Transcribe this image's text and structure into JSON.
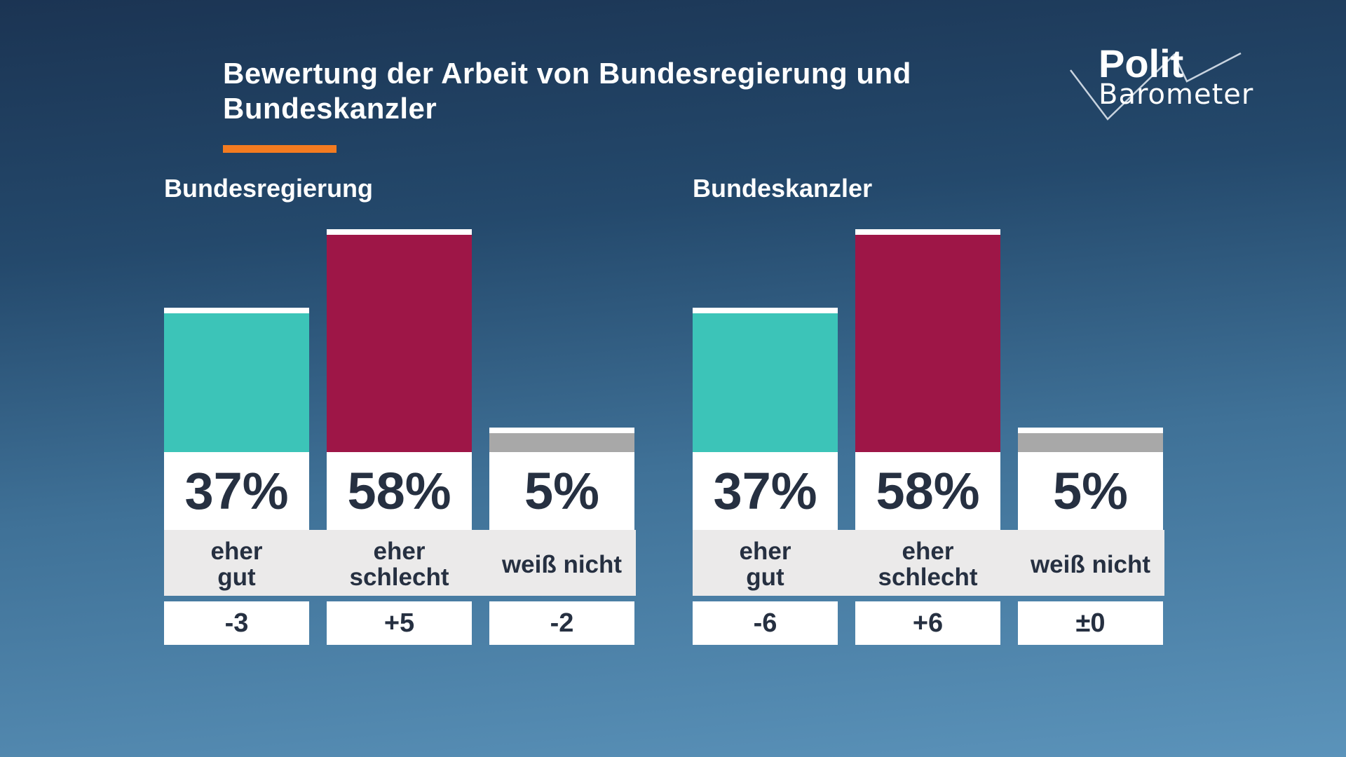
{
  "title": "Bewertung der Arbeit von Bundesregierung und Bundeskanzler",
  "logo": {
    "line1": "Polit",
    "line2": "Barometer"
  },
  "colors": {
    "positive": "#3cc4b8",
    "negative": "#9e1647",
    "unknown": "#a8a8a8",
    "accent": "#f47b20"
  },
  "chart_data": [
    {
      "type": "bar",
      "title": "Bundesregierung",
      "categories": [
        "eher\ngut",
        "eher\nschlecht",
        "weiß nicht"
      ],
      "values": [
        37,
        58,
        5
      ],
      "value_labels": [
        "37%",
        "58%",
        "5%"
      ],
      "changes": [
        "-3",
        "+5",
        "-2"
      ]
    },
    {
      "type": "bar",
      "title": "Bundeskanzler",
      "categories": [
        "eher\ngut",
        "eher\nschlecht",
        "weiß nicht"
      ],
      "values": [
        37,
        58,
        5
      ],
      "value_labels": [
        "37%",
        "58%",
        "5%"
      ],
      "changes": [
        "-6",
        "+6",
        "±0"
      ]
    }
  ]
}
